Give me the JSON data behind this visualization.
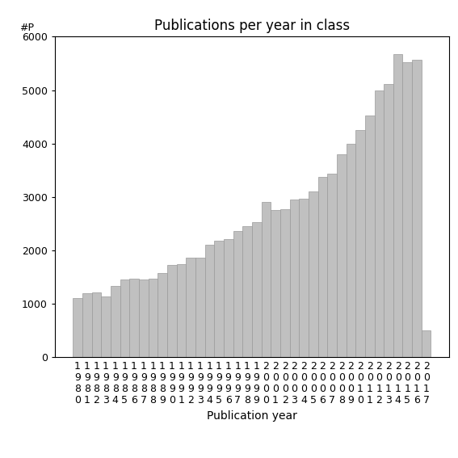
{
  "title": "Publications per year in class",
  "xlabel": "Publication year",
  "ylabel": "#P",
  "years": [
    1980,
    1981,
    1982,
    1983,
    1984,
    1985,
    1986,
    1987,
    1988,
    1989,
    1990,
    1991,
    1992,
    1993,
    1994,
    1995,
    1996,
    1997,
    1998,
    1999,
    2000,
    2001,
    2002,
    2003,
    2004,
    2005,
    2006,
    2007,
    2008,
    2009,
    2010,
    2011,
    2012,
    2013,
    2014,
    2015,
    2016,
    2017
  ],
  "values": [
    1100,
    1200,
    1220,
    1140,
    1340,
    1450,
    1470,
    1460,
    1470,
    1570,
    1730,
    1740,
    1870,
    1870,
    2100,
    2180,
    2210,
    2360,
    2460,
    2530,
    2900,
    2750,
    2770,
    2950,
    2960,
    3100,
    3380,
    3440,
    3800,
    4000,
    4250,
    4520,
    5000,
    5120,
    5680,
    5520,
    5560,
    500
  ],
  "bar_color": "#c0c0c0",
  "bar_edgecolor": "#999999",
  "ylim": [
    0,
    6000
  ],
  "yticks": [
    0,
    1000,
    2000,
    3000,
    4000,
    5000,
    6000
  ],
  "background_color": "#ffffff",
  "title_fontsize": 12,
  "axis_label_fontsize": 10,
  "tick_fontsize": 9,
  "ylabel_fontsize": 9
}
